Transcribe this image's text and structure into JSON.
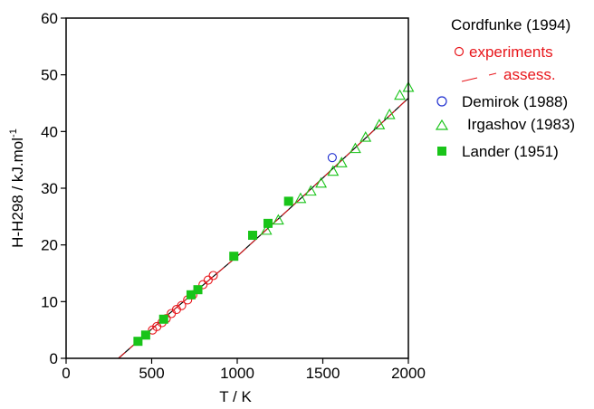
{
  "chart_data": {
    "type": "scatter",
    "title": "",
    "xlabel": "T / K",
    "ylabel": "H-H298 / kJ.mol",
    "ylabel_sup": "-1",
    "xlim": [
      0,
      2000
    ],
    "ylim": [
      0,
      60
    ],
    "xticks": [
      0,
      500,
      1000,
      1500,
      2000
    ],
    "yticks": [
      0,
      10,
      20,
      30,
      40,
      50,
      60
    ],
    "grid": false,
    "legend_position": "right",
    "legend_heading": "Cordfunke (1994)",
    "series": [
      {
        "name": "experiments",
        "marker": "open-circle",
        "color": "#e8161b",
        "points": [
          [
            505,
            5.0
          ],
          [
            530,
            5.6
          ],
          [
            560,
            6.3
          ],
          [
            585,
            7.0
          ],
          [
            615,
            7.9
          ],
          [
            645,
            8.6
          ],
          [
            675,
            9.3
          ],
          [
            710,
            10.3
          ],
          [
            740,
            11.2
          ],
          [
            800,
            13.0
          ],
          [
            830,
            13.8
          ],
          [
            860,
            14.6
          ]
        ]
      },
      {
        "name": "assess.",
        "marker": "dashed-line",
        "color": "#e8161b",
        "points": [
          [
            306,
            0
          ],
          [
            600,
            7.8
          ],
          [
            1000,
            18.0
          ],
          [
            1400,
            29.0
          ],
          [
            2000,
            45.9
          ]
        ]
      },
      {
        "name": "Demirok (1988)",
        "marker": "open-circle",
        "color": "#1f2fd0",
        "points": [
          [
            1555,
            35.4
          ]
        ]
      },
      {
        "name": "Irgashov (1983)",
        "marker": "open-triangle",
        "color": "#19c419",
        "points": [
          [
            1170,
            22.6
          ],
          [
            1240,
            24.4
          ],
          [
            1370,
            28.2
          ],
          [
            1430,
            29.5
          ],
          [
            1490,
            30.9
          ],
          [
            1560,
            33.0
          ],
          [
            1610,
            34.5
          ],
          [
            1690,
            37.0
          ],
          [
            1750,
            39.0
          ],
          [
            1830,
            41.2
          ],
          [
            1890,
            43.0
          ],
          [
            1950,
            46.4
          ],
          [
            2000,
            47.8
          ]
        ]
      },
      {
        "name": "Lander (1951)",
        "marker": "filled-square",
        "color": "#19c419",
        "points": [
          [
            420,
            3.0
          ],
          [
            465,
            4.1
          ],
          [
            570,
            6.9
          ],
          [
            730,
            11.2
          ],
          [
            770,
            12.1
          ],
          [
            980,
            18.0
          ],
          [
            1090,
            21.7
          ],
          [
            1180,
            23.8
          ],
          [
            1300,
            27.7
          ]
        ]
      }
    ],
    "fit_line": {
      "color": "#000000",
      "points": [
        [
          306,
          0
        ],
        [
          600,
          7.8
        ],
        [
          1000,
          18.0
        ],
        [
          1400,
          29.0
        ],
        [
          2000,
          45.9
        ]
      ]
    }
  }
}
